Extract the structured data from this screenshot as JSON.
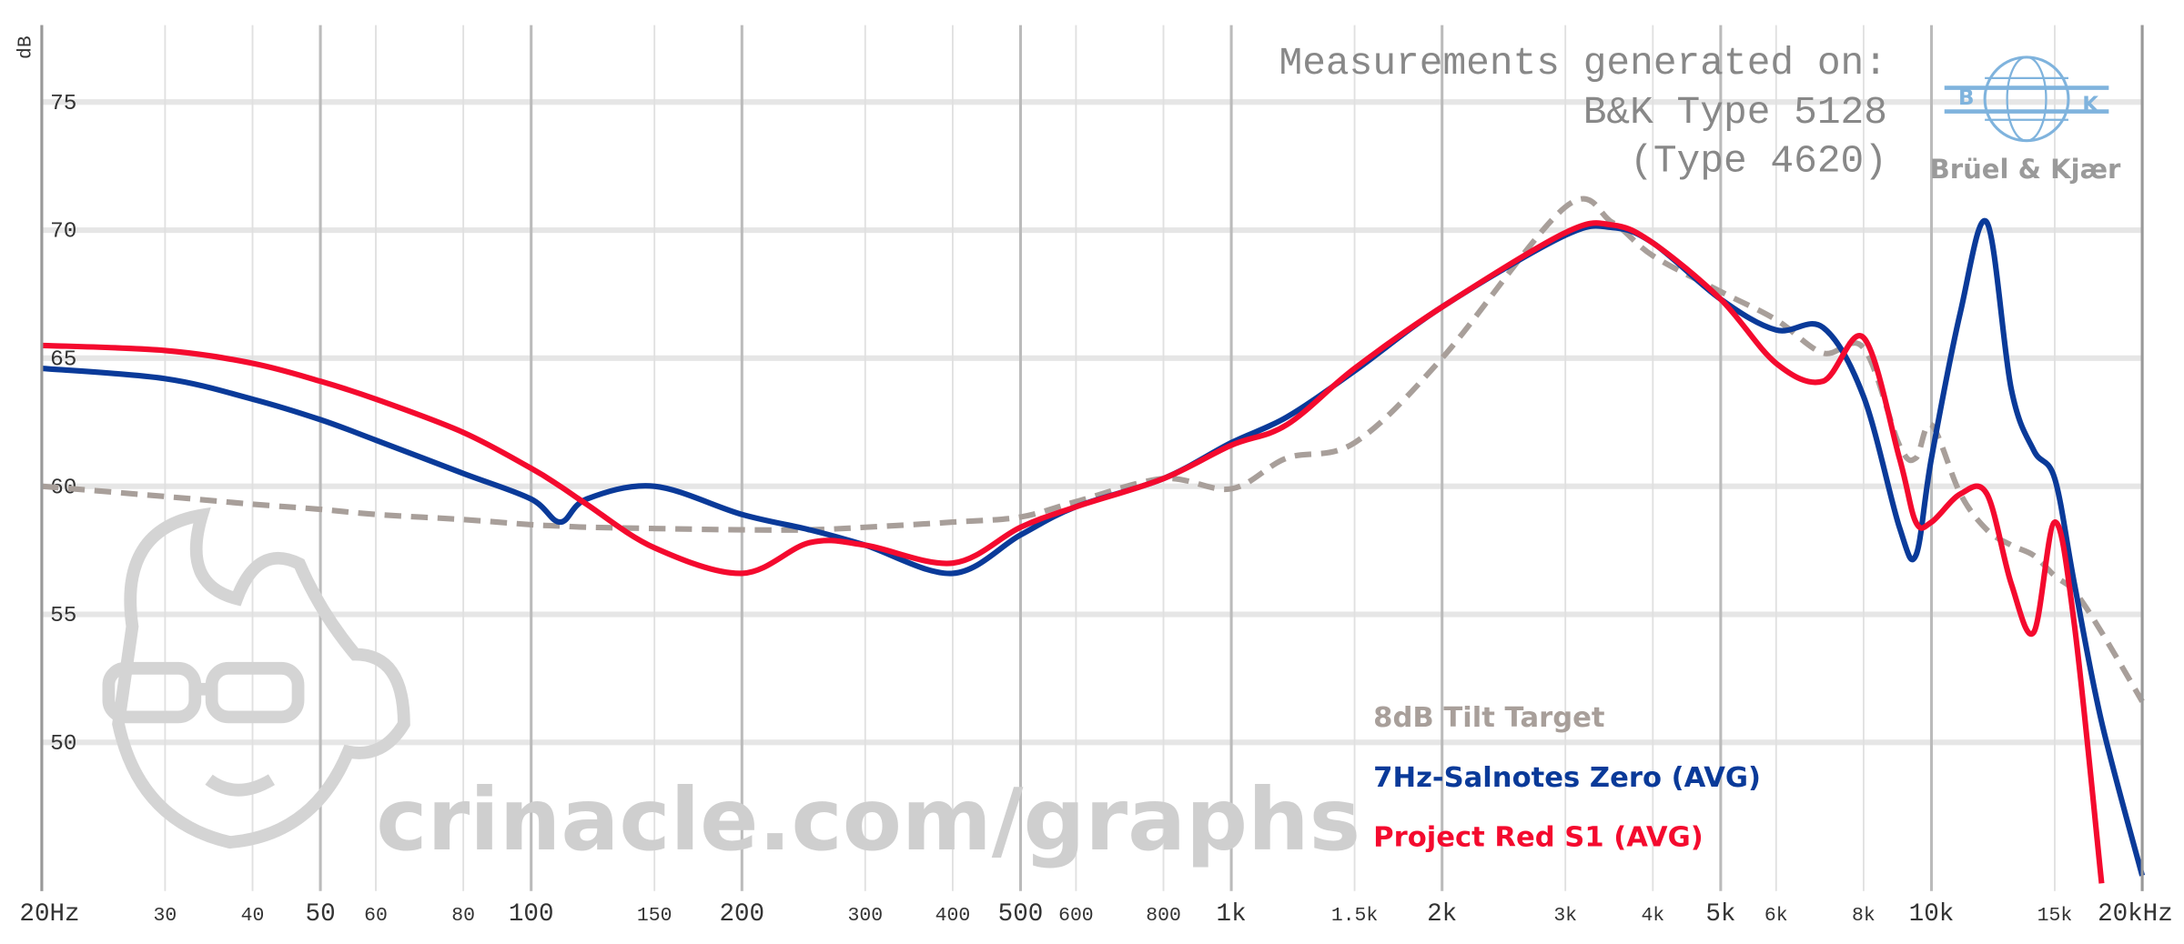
{
  "chart_data": {
    "type": "line",
    "y_label": "dB",
    "annotation": [
      "Measurements generated on:",
      "B&K Type 5128",
      "(Type 4620)"
    ],
    "logo": {
      "left": "B",
      "right": "K",
      "name": "Brüel & Kjær"
    },
    "watermark": "crinacle.com/graphs",
    "x_log": true,
    "grid": true,
    "xlim": [
      20,
      20000
    ],
    "ylim": [
      44.2,
      78
    ],
    "yticks": [
      50,
      55,
      60,
      65,
      70,
      75
    ],
    "xticks": [
      {
        "value": 20,
        "label": "20Hz"
      },
      30,
      40,
      50,
      60,
      80,
      100,
      150,
      200,
      300,
      400,
      500,
      600,
      800,
      {
        "value": 1000,
        "label": "1k"
      },
      {
        "value": 1500,
        "label": "1.5k"
      },
      {
        "value": 2000,
        "label": "2k"
      },
      {
        "value": 3000,
        "label": "3k"
      },
      {
        "value": 4000,
        "label": "4k"
      },
      {
        "value": 5000,
        "label": "5k"
      },
      {
        "value": 6000,
        "label": "6k"
      },
      {
        "value": 8000,
        "label": "8k"
      },
      {
        "value": 10000,
        "label": "10k"
      },
      {
        "value": 15000,
        "label": "15k"
      },
      {
        "value": 20000,
        "label": "20kHz"
      }
    ],
    "x": [
      20,
      30,
      40,
      50,
      60,
      80,
      100,
      110,
      120,
      150,
      200,
      250,
      300,
      400,
      500,
      600,
      800,
      1000,
      1200,
      1500,
      2000,
      3000,
      3500,
      4000,
      5000,
      6000,
      7000,
      8000,
      9000,
      9500,
      10000,
      11000,
      12000,
      13000,
      14000,
      15000,
      16000,
      17500,
      20000
    ],
    "series": [
      {
        "name": "8dB Tilt Target",
        "color": "#a89f9a",
        "dashed": true,
        "values": [
          60.0,
          59.6,
          59.3,
          59.1,
          58.9,
          58.7,
          58.5,
          58.45,
          58.4,
          58.35,
          58.3,
          58.3,
          58.4,
          58.6,
          58.8,
          59.4,
          60.3,
          59.9,
          61.1,
          61.7,
          65.0,
          70.9,
          70.3,
          69.0,
          67.6,
          66.5,
          65.2,
          65.4,
          61.6,
          61.1,
          62.4,
          59.7,
          58.3,
          57.7,
          57.3,
          56.5,
          55.9,
          54.3,
          51.6
        ]
      },
      {
        "name": "7Hz-Salnotes Zero (AVG)",
        "color": "#0a3a99",
        "dashed": false,
        "values": [
          64.6,
          64.2,
          63.4,
          62.6,
          61.8,
          60.5,
          59.5,
          58.6,
          59.5,
          60.0,
          58.9,
          58.3,
          57.7,
          56.6,
          58.1,
          59.2,
          60.3,
          61.7,
          62.7,
          64.5,
          67.0,
          69.8,
          70.1,
          69.5,
          67.3,
          66.1,
          66.2,
          63.5,
          58.4,
          57.3,
          61.1,
          66.8,
          70.3,
          63.8,
          61.4,
          60.3,
          56.2,
          50.8,
          44.8
        ]
      },
      {
        "name": "Project Red S1 (AVG)",
        "color": "#f40a2e",
        "dashed": false,
        "values": [
          65.5,
          65.3,
          64.8,
          64.1,
          63.4,
          62.1,
          60.7,
          60.0,
          59.3,
          57.6,
          56.6,
          57.8,
          57.7,
          57.0,
          58.4,
          59.2,
          60.3,
          61.6,
          62.4,
          64.6,
          67.0,
          69.9,
          70.2,
          69.5,
          67.3,
          64.8,
          64.1,
          65.8,
          61.1,
          58.6,
          58.6,
          59.7,
          59.7,
          56.2,
          54.3,
          58.6,
          54.6,
          44.5,
          null
        ]
      }
    ]
  }
}
